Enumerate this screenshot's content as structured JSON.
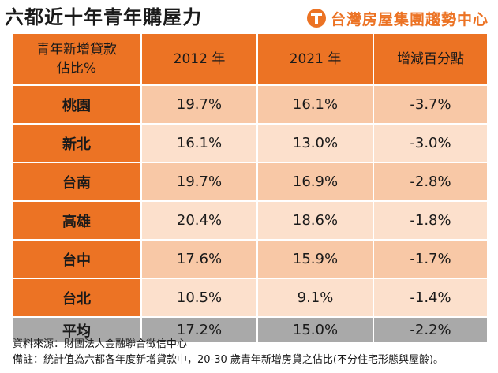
{
  "title": "六都近十年青年購屋力",
  "brand": "台灣房屋集團趨勢中心",
  "brand_color": "#ec7324",
  "table": {
    "headers": [
      "青年新增貸款\n佔比%",
      "2012 年",
      "2021 年",
      "增減百分點"
    ],
    "rows": [
      [
        "桃園",
        "19.7%",
        "16.1%",
        "-3.7%"
      ],
      [
        "新北",
        "16.1%",
        "13.0%",
        "-3.0%"
      ],
      [
        "台南",
        "19.7%",
        "16.9%",
        "-2.8%"
      ],
      [
        "高雄",
        "20.4%",
        "18.6%",
        "-1.8%"
      ],
      [
        "台中",
        "17.6%",
        "15.9%",
        "-1.7%"
      ],
      [
        "台北",
        "10.5%",
        "9.1%",
        "-1.4%"
      ]
    ],
    "average": [
      "平均",
      "17.2%",
      "15.0%",
      "-2.2%"
    ]
  },
  "notes": {
    "source": "資料來源：財團法人金融聯合徵信中心",
    "remark": "備註：統計值為六都各年度新增貸款中，20-30 歲青年新增房貸之佔比(不分住宅形態與屋齡)。"
  }
}
